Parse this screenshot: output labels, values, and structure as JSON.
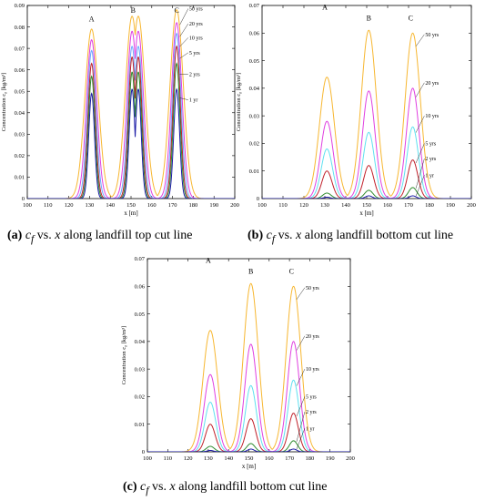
{
  "chart_data": [
    {
      "type": "line",
      "panel": "a",
      "xlabel": "x [m]",
      "ylabel": "Concentration c_f [kg/m^3]",
      "xlim": [
        100,
        200
      ],
      "ylim": [
        0,
        0.09
      ],
      "xticks": [
        100,
        110,
        120,
        130,
        140,
        150,
        160,
        170,
        180,
        190,
        200
      ],
      "yticks": [
        0,
        0.01,
        0.02,
        0.03,
        0.04,
        0.05,
        0.06,
        0.07,
        0.08,
        0.09
      ],
      "ytick_labels": [
        "0",
        "0.01",
        "0.02",
        "0.03",
        "0.04",
        "0.05",
        "0.06",
        "0.07",
        "0.08",
        "0.09"
      ],
      "grid": false,
      "peak_labels": [
        "A",
        "B",
        "C"
      ],
      "peak_label_x": [
        131,
        151,
        172
      ],
      "peak_label_y": [
        0.0825,
        0.0865,
        0.0865
      ],
      "peak_centers": [
        131,
        150.5,
        153.5,
        172
      ],
      "series": [
        {
          "name": "50 yrs",
          "color": "#f7b731",
          "peaks": [
            0.079,
            0.085,
            0.085,
            0.088
          ],
          "width": 3.2,
          "label_y": 0.0885
        },
        {
          "name": "20 yrs",
          "color": "#e040e0",
          "peaks": [
            0.074,
            0.078,
            0.078,
            0.082
          ],
          "width": 2.5,
          "label_y": 0.0815
        },
        {
          "name": "10 yrs",
          "color": "#6aa8ff",
          "peaks": [
            0.069,
            0.071,
            0.071,
            0.077
          ],
          "width": 2.1,
          "label_y": 0.075
        },
        {
          "name": "5 yrs",
          "color": "#c0202a",
          "peaks": [
            0.063,
            0.066,
            0.066,
            0.071
          ],
          "width": 1.8,
          "label_y": 0.068
        },
        {
          "name": "2 yrs",
          "color": "#2e8b2e",
          "peaks": [
            0.057,
            0.059,
            0.059,
            0.063
          ],
          "width": 1.6,
          "label_y": 0.058
        },
        {
          "name": "1 yr",
          "color": "#1a1aa6",
          "peaks": [
            0.049,
            0.051,
            0.051,
            0.051
          ],
          "width": 1.4,
          "label_y": 0.046
        }
      ]
    },
    {
      "type": "line",
      "panel": "b",
      "xlabel": "x [m]",
      "ylabel": "Concentration c_f [kg/m^3]",
      "xlim": [
        100,
        200
      ],
      "ylim": [
        0,
        0.07
      ],
      "xticks": [
        100,
        110,
        120,
        130,
        140,
        150,
        160,
        170,
        180,
        190,
        200
      ],
      "yticks": [
        0,
        0.01,
        0.02,
        0.03,
        0.04,
        0.05,
        0.06,
        0.07
      ],
      "ytick_labels": [
        "0",
        "0.01",
        "0.02",
        "0.03",
        "0.04",
        "0.05",
        "0.06",
        "0.07"
      ],
      "grid": false,
      "peak_labels": [
        "A",
        "B",
        "C"
      ],
      "peak_label_x": [
        130,
        151,
        171
      ],
      "peak_label_y": [
        0.0685,
        0.0645,
        0.0645
      ],
      "peak_centers": [
        131,
        151,
        172
      ],
      "series": [
        {
          "name": "50 yrs",
          "color": "#f7b731",
          "peaks": [
            0.044,
            0.061,
            0.06
          ],
          "width": 3.6,
          "label_y": 0.0595
        },
        {
          "name": "20 yrs",
          "color": "#e040e0",
          "peaks": [
            0.028,
            0.039,
            0.04
          ],
          "width": 3.0,
          "label_y": 0.042
        },
        {
          "name": "10 yrs",
          "color": "#5fe0f0",
          "peaks": [
            0.018,
            0.024,
            0.026
          ],
          "width": 2.7,
          "label_y": 0.03
        },
        {
          "name": "5 yrs",
          "color": "#c0202a",
          "peaks": [
            0.01,
            0.012,
            0.014
          ],
          "width": 2.4,
          "label_y": 0.02
        },
        {
          "name": "2 yrs",
          "color": "#2e8b2e",
          "peaks": [
            0.002,
            0.003,
            0.004
          ],
          "width": 2.0,
          "label_y": 0.0145
        },
        {
          "name": "1 yr",
          "color": "#1a1aa6",
          "peaks": [
            0.0005,
            0.001,
            0.001
          ],
          "width": 1.6,
          "label_y": 0.0085
        }
      ]
    },
    {
      "type": "line",
      "panel": "c",
      "xlabel": "x [m]",
      "ylabel": "Concentration c_f [kg/m^3]",
      "xlim": [
        100,
        200
      ],
      "ylim": [
        0,
        0.07
      ],
      "xticks": [
        100,
        110,
        120,
        130,
        140,
        150,
        160,
        170,
        180,
        190,
        200
      ],
      "yticks": [
        0,
        0.01,
        0.02,
        0.03,
        0.04,
        0.05,
        0.06,
        0.07
      ],
      "ytick_labels": [
        "0",
        "0.01",
        "0.02",
        "0.03",
        "0.04",
        "0.05",
        "0.06",
        "0.07"
      ],
      "grid": false,
      "peak_labels": [
        "A",
        "B",
        "C"
      ],
      "peak_label_x": [
        130,
        151,
        171
      ],
      "peak_label_y": [
        0.0685,
        0.0645,
        0.0645
      ],
      "peak_centers": [
        131,
        151,
        172
      ],
      "series": [
        {
          "name": "50 yrs",
          "color": "#f7b731",
          "peaks": [
            0.044,
            0.061,
            0.06
          ],
          "width": 3.6,
          "label_y": 0.0595
        },
        {
          "name": "20 yrs",
          "color": "#e040e0",
          "peaks": [
            0.028,
            0.039,
            0.04
          ],
          "width": 3.0,
          "label_y": 0.042
        },
        {
          "name": "10 yrs",
          "color": "#5fe0f0",
          "peaks": [
            0.018,
            0.024,
            0.026
          ],
          "width": 2.7,
          "label_y": 0.03
        },
        {
          "name": "5 yrs",
          "color": "#c0202a",
          "peaks": [
            0.01,
            0.012,
            0.014
          ],
          "width": 2.4,
          "label_y": 0.02
        },
        {
          "name": "2 yrs",
          "color": "#2e8b2e",
          "peaks": [
            0.002,
            0.003,
            0.004
          ],
          "width": 2.0,
          "label_y": 0.0145
        },
        {
          "name": "1 yr",
          "color": "#1a1aa6",
          "peaks": [
            0.0005,
            0.001,
            0.001
          ],
          "width": 1.6,
          "label_y": 0.0085
        }
      ]
    }
  ],
  "captions": [
    {
      "tag": "(a)",
      "var": "c",
      "sub": "f",
      "mid": " vs. ",
      "var2": "x",
      "tail": " along landfill top cut line"
    },
    {
      "tag": "(b)",
      "var": "c",
      "sub": "f",
      "mid": " vs. ",
      "var2": "x",
      "tail": " along landfill bottom cut line"
    },
    {
      "tag": "(c)",
      "var": "c",
      "sub": "f",
      "mid": " vs. ",
      "var2": "x",
      "tail": " along landfill bottom cut line"
    }
  ]
}
